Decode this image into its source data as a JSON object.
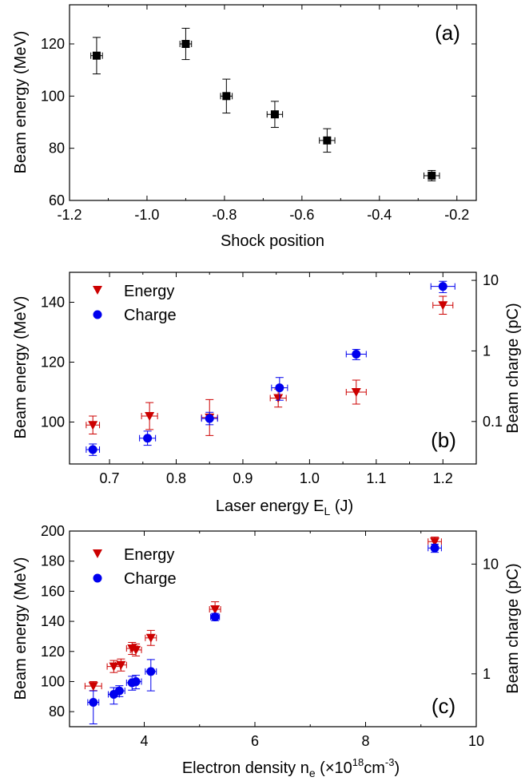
{
  "chart_data": [
    {
      "panel": "(a)",
      "type": "scatter",
      "xlabel": "Shock position",
      "ylabel": "Beam energy (MeV)",
      "xlim": [
        -1.2,
        -0.15
      ],
      "ylim": [
        60,
        135
      ],
      "xticks": [
        -1.2,
        -1.0,
        -0.8,
        -0.6,
        -0.4,
        -0.2
      ],
      "xtick_labels": [
        "-1.2",
        "-1.0",
        "-0.8",
        "-0.6",
        "-0.4",
        "-0.2"
      ],
      "yticks": [
        60,
        80,
        100,
        120
      ],
      "ytick_labels": [
        "60",
        "80",
        "100",
        "120"
      ],
      "series": [
        {
          "color": "#000000",
          "marker": "square",
          "points": [
            {
              "x": -1.13,
              "y": 115.5,
              "xerr": 0.015,
              "yerr": 7
            },
            {
              "x": -0.9,
              "y": 120,
              "xerr": 0.015,
              "yerr": 6
            },
            {
              "x": -0.795,
              "y": 100,
              "xerr": 0.015,
              "yerr": 6.5
            },
            {
              "x": -0.67,
              "y": 93,
              "xerr": 0.02,
              "yerr": 5
            },
            {
              "x": -0.535,
              "y": 83,
              "xerr": 0.02,
              "yerr": 4.5
            },
            {
              "x": -0.265,
              "y": 69.5,
              "xerr": 0.02,
              "yerr": 2
            }
          ]
        }
      ]
    },
    {
      "panel": "(b)",
      "type": "scatter",
      "xlabel": "Laser energy E",
      "xlabel_sub": "L",
      "xlabel_unit": " (J)",
      "ylabel": "Beam energy (MeV)",
      "y2label": "Beam charge (pC)",
      "xlim": [
        0.64,
        1.25
      ],
      "ylim": [
        86,
        150
      ],
      "y2_log": true,
      "y2lim": [
        0.025,
        13
      ],
      "xticks": [
        0.7,
        0.8,
        0.9,
        1.0,
        1.1,
        1.2
      ],
      "xtick_labels": [
        "0.7",
        "0.8",
        "0.9",
        "1.0",
        "1.1",
        "1.2"
      ],
      "yticks": [
        100,
        120,
        140
      ],
      "ytick_labels": [
        "100",
        "120",
        "140"
      ],
      "y2ticks": [
        0.1,
        1,
        10
      ],
      "y2tick_labels": [
        "0.1",
        "1",
        "10"
      ],
      "series": [
        {
          "name": "Energy",
          "color": "#cc0000",
          "marker": "triangle-down",
          "axis": "left",
          "points": [
            {
              "x": 0.675,
              "y": 99,
              "xerr": 0.01,
              "yerr": 3
            },
            {
              "x": 0.76,
              "y": 102,
              "xerr": 0.012,
              "yerr": 4.5
            },
            {
              "x": 0.85,
              "y": 101.5,
              "xerr": 0.012,
              "yerr": 6
            },
            {
              "x": 0.953,
              "y": 108,
              "xerr": 0.012,
              "yerr": 3
            },
            {
              "x": 1.07,
              "y": 110,
              "xerr": 0.015,
              "yerr": 4
            },
            {
              "x": 1.2,
              "y": 139,
              "xerr": 0.015,
              "yerr": 3
            }
          ]
        },
        {
          "name": "Charge",
          "color": "#0000ee",
          "marker": "circle",
          "axis": "right",
          "points": [
            {
              "x": 0.675,
              "y": 0.04,
              "xerr": 0.01,
              "yerr_lo": 0.007,
              "yerr_hi": 0.008
            },
            {
              "x": 0.757,
              "y": 0.058,
              "xerr": 0.012,
              "yerr_lo": 0.012,
              "yerr_hi": 0.015
            },
            {
              "x": 0.85,
              "y": 0.11,
              "xerr": 0.012,
              "yerr_lo": 0.02,
              "yerr_hi": 0.025
            },
            {
              "x": 0.955,
              "y": 0.3,
              "xerr": 0.012,
              "yerr_lo": 0.1,
              "yerr_hi": 0.12
            },
            {
              "x": 1.07,
              "y": 0.9,
              "xerr": 0.015,
              "yerr_lo": 0.15,
              "yerr_hi": 0.15
            },
            {
              "x": 1.2,
              "y": 8.2,
              "xerr": 0.018,
              "yerr_lo": 1.5,
              "yerr_hi": 1.5
            }
          ]
        }
      ]
    },
    {
      "panel": "(c)",
      "type": "scatter",
      "xlabel": "Electron density n",
      "xlabel_sub": "e",
      "xlabel_unit_pre": " (×10",
      "xlabel_sup": "18",
      "xlabel_unit_mid": "cm",
      "xlabel_sup2": "-3",
      "xlabel_unit_post": ")",
      "ylabel": "Beam energy (MeV)",
      "y2label": "Beam charge (pC)",
      "xlim": [
        2.65,
        10
      ],
      "ylim": [
        70,
        200
      ],
      "y2_log": true,
      "y2lim": [
        0.33,
        20
      ],
      "xticks": [
        4,
        6,
        8,
        10
      ],
      "xtick_labels": [
        "4",
        "6",
        "8",
        "10"
      ],
      "yticks": [
        80,
        100,
        120,
        140,
        160,
        180,
        200
      ],
      "ytick_labels": [
        "80",
        "100",
        "120",
        "140",
        "160",
        "180",
        "200"
      ],
      "y2ticks": [
        1,
        10
      ],
      "y2tick_labels": [
        "1",
        "10"
      ],
      "series": [
        {
          "name": "Energy",
          "color": "#cc0000",
          "marker": "triangle-down",
          "axis": "left",
          "points": [
            {
              "x": 3.08,
              "y": 97,
              "xerr": 0.15,
              "yerr": 3
            },
            {
              "x": 3.45,
              "y": 110,
              "xerr": 0.12,
              "yerr": 4
            },
            {
              "x": 3.58,
              "y": 111,
              "xerr": 0.1,
              "yerr": 4
            },
            {
              "x": 3.78,
              "y": 122,
              "xerr": 0.1,
              "yerr": 4
            },
            {
              "x": 3.85,
              "y": 121,
              "xerr": 0.1,
              "yerr": 4
            },
            {
              "x": 4.12,
              "y": 129,
              "xerr": 0.1,
              "yerr": 5
            },
            {
              "x": 5.28,
              "y": 148,
              "xerr": 0.1,
              "yerr": 5
            },
            {
              "x": 9.25,
              "y": 193,
              "xerr": 0.12,
              "yerr": 3
            }
          ]
        },
        {
          "name": "Charge",
          "color": "#0000ee",
          "marker": "circle",
          "axis": "right",
          "points": [
            {
              "x": 3.08,
              "y": 0.55,
              "xerr": 0.1,
              "yerr_lo": 0.2,
              "yerr_hi": 0.15
            },
            {
              "x": 3.45,
              "y": 0.65,
              "xerr": 0.1,
              "yerr_lo": 0.12,
              "yerr_hi": 0.1
            },
            {
              "x": 3.55,
              "y": 0.7,
              "xerr": 0.1,
              "yerr_lo": 0.08,
              "yerr_hi": 0.08
            },
            {
              "x": 3.78,
              "y": 0.83,
              "xerr": 0.1,
              "yerr_lo": 0.12,
              "yerr_hi": 0.12
            },
            {
              "x": 3.85,
              "y": 0.85,
              "xerr": 0.1,
              "yerr_lo": 0.12,
              "yerr_hi": 0.12
            },
            {
              "x": 4.12,
              "y": 1.05,
              "xerr": 0.1,
              "yerr_lo": 0.35,
              "yerr_hi": 0.3
            },
            {
              "x": 5.28,
              "y": 3.3,
              "xerr": 0.08,
              "yerr_lo": 0.25,
              "yerr_hi": 0.25
            },
            {
              "x": 9.25,
              "y": 14,
              "xerr": 0.12,
              "yerr_lo": 1.2,
              "yerr_hi": 1.2
            }
          ]
        }
      ]
    }
  ]
}
